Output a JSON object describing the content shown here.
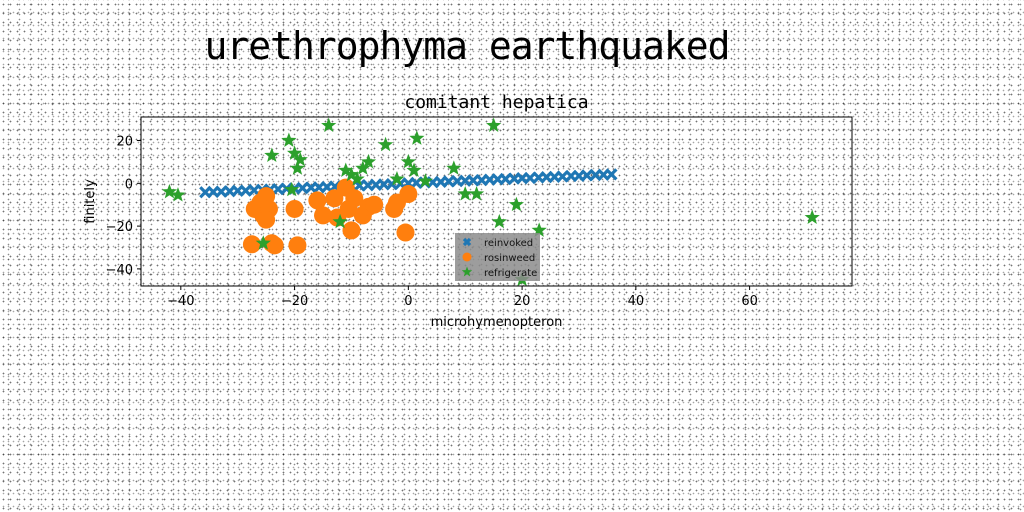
{
  "page_title": "urethrophyma earthquaked",
  "chart_data": {
    "type": "scatter",
    "title": "comitant hepatica",
    "xlabel": "microhymenopteron",
    "ylabel": "finitely",
    "xlim": [
      -47,
      78
    ],
    "ylim": [
      -48,
      31
    ],
    "xticks": [
      -40,
      -20,
      0,
      20,
      40,
      60
    ],
    "yticks": [
      -40,
      -20,
      0,
      20
    ],
    "grid": false,
    "legend_position": "lower-center",
    "series": [
      {
        "name": "reinvoked",
        "marker": "x",
        "color": "#1f77b4",
        "x": [
          -35.7,
          -34.3,
          -32.9,
          -31.4,
          -30.0,
          -28.6,
          -27.1,
          -25.7,
          -24.3,
          -22.9,
          -21.4,
          -20.0,
          -18.6,
          -17.1,
          -15.7,
          -14.3,
          -12.9,
          -11.4,
          -10.0,
          -8.6,
          -7.1,
          -5.7,
          -4.3,
          -2.9,
          -1.4,
          0.0,
          1.4,
          2.9,
          4.3,
          5.7,
          7.1,
          8.6,
          10.0,
          11.4,
          12.9,
          14.3,
          15.7,
          17.1,
          18.6,
          20.0,
          21.4,
          22.9,
          24.3,
          25.7,
          27.1,
          28.6,
          30.0,
          31.4,
          32.9,
          34.3,
          35.7
        ],
        "y": [
          -4.2,
          -4.0,
          -3.9,
          -3.7,
          -3.5,
          -3.4,
          -3.2,
          -3.0,
          -2.9,
          -2.7,
          -2.5,
          -2.4,
          -2.2,
          -2.0,
          -1.9,
          -1.7,
          -1.5,
          -1.4,
          -1.2,
          -1.0,
          -0.9,
          -0.7,
          -0.5,
          -0.4,
          -0.2,
          0.0,
          0.2,
          0.4,
          0.5,
          0.7,
          0.9,
          1.0,
          1.2,
          1.4,
          1.5,
          1.7,
          1.9,
          2.0,
          2.2,
          2.4,
          2.5,
          2.7,
          2.9,
          3.0,
          3.2,
          3.4,
          3.5,
          3.7,
          3.9,
          4.0,
          4.2
        ]
      },
      {
        "name": "rosinweed",
        "marker": "circle",
        "color": "#ff7f0e",
        "x": [
          -27.5,
          -27.0,
          -26.0,
          -25.5,
          -25.0,
          -24.5,
          -24.0,
          -23.5,
          -20.0,
          -19.5,
          -16.0,
          -15.0,
          -13.0,
          -12.5,
          -11.0,
          -10.5,
          -10.0,
          -9.5,
          -8.0,
          -7.0,
          -6.0,
          -2.5,
          -2.0,
          -0.5,
          0.0,
          -25.0
        ],
        "y": [
          -28.5,
          -12.0,
          -9.0,
          -15.0,
          -6.0,
          -12.0,
          -28.0,
          -29.0,
          -12.0,
          -29.0,
          -8.0,
          -15.0,
          -7.0,
          -16.0,
          -2.0,
          -12.0,
          -22.0,
          -7.0,
          -15.0,
          -11.0,
          -10.0,
          -12.0,
          -9.0,
          -23.0,
          -5.0,
          -17.0
        ]
      },
      {
        "name": "refrigerate",
        "marker": "star",
        "color": "#2ca02c",
        "x": [
          -42.0,
          -40.5,
          -24.0,
          -21.0,
          -20.0,
          -19.5,
          -19.0,
          -20.5,
          -14.0,
          -12.0,
          -11.0,
          -10.0,
          -9.0,
          -8.0,
          -7.0,
          -4.0,
          -2.0,
          0.0,
          1.0,
          1.5,
          3.0,
          8.0,
          10.0,
          12.0,
          15.0,
          16.0,
          19.0,
          20.0,
          23.0,
          71.0,
          -25.5
        ],
        "y": [
          -4.0,
          -5.5,
          13.0,
          20.0,
          14.0,
          7.0,
          11.0,
          -3.0,
          27.0,
          -18.0,
          6.0,
          4.0,
          2.0,
          7.0,
          10.0,
          18.0,
          2.0,
          10.0,
          6.0,
          21.0,
          1.0,
          7.0,
          -5.0,
          -5.0,
          27.0,
          -18.0,
          -10.0,
          -45.0,
          -22.0,
          -16.0,
          -28.0
        ]
      }
    ]
  }
}
